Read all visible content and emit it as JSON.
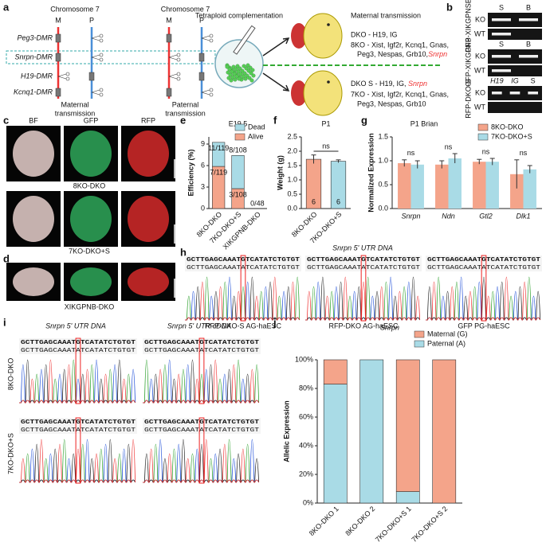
{
  "panels": {
    "letters": [
      "a",
      "b",
      "c",
      "d",
      "e",
      "f",
      "g",
      "h",
      "i",
      "j"
    ]
  },
  "diagram_a": {
    "chromosome_titles": [
      "Chromosome 7",
      "Chromosome 7"
    ],
    "parents": [
      "M",
      "P",
      "M",
      "P"
    ],
    "dmrs": [
      "Peg3-DMR",
      "Snrpn-DMR",
      "H19-DMR",
      "Kcnq1-DMR"
    ],
    "transmission": [
      "Maternal",
      "transmission",
      "Paternal",
      "transmission"
    ],
    "method": "Tetraploid complementation",
    "heading": "Maternal transmission",
    "maternal_lines": [
      "DKO - H19, IG",
      "8KO - Xist, Igf2r, Kcnq1, Gnas,",
      "Peg3, Nespas, Grb10,",
      "Snrpn"
    ],
    "paternal_lines": [
      "DKO S - H19, IG, ",
      "Snrpn",
      "7KO - Xist, Igf2r, Kcnq1, Gnas,",
      "Peg3, Nespas, Grb10"
    ]
  },
  "gels_b": [
    {
      "name": "GFP-XIKGPNSB",
      "lanes": [
        "S",
        "B"
      ],
      "rows": [
        "KO",
        "WT"
      ]
    },
    {
      "name": "GFP-XIKGPNB",
      "lanes": [
        "S",
        "B"
      ],
      "rows": [
        "KO",
        "WT"
      ]
    },
    {
      "name": "RFP-DKO-S",
      "lanes": [
        "H19",
        "IG",
        "S"
      ],
      "rows": [
        "KO",
        "WT"
      ]
    }
  ],
  "images_c": {
    "channels": [
      "BF",
      "GFP",
      "RFP"
    ],
    "rows": [
      "8KO-DKO",
      "7KO-DKO+S"
    ]
  },
  "images_d": {
    "row": "XIKGPNB-DKO"
  },
  "sanger_h": {
    "title": "Snrpn 5' UTR DNA",
    "columns": [
      {
        "ref": "GCTTGAGCAAATGTCATATCTGTGT",
        "read": "GCTTGAGCAAATATCATATCTGTGT",
        "label": "RFP-DKO-S AG-haESC"
      },
      {
        "ref": "GCTTGAGCAAATGTCATATCTGTGT",
        "read": "GCTTGAGCAAATATCATATCTGTGT",
        "label": "RFP-DKO AG-haESC"
      },
      {
        "ref": "GCTTGAGCAAATGTCATATCTGTGT",
        "read": "GCTTGAGCAAATATCATATCTGTGT",
        "label": "GFP PG-haESC"
      }
    ]
  },
  "sanger_i": {
    "titles": [
      "Snrpn 5' UTR DNA",
      "Snrpn 5' UTR cDNA"
    ],
    "rows": [
      "8KO-DKO",
      "7KO-DKO+S"
    ],
    "cells": [
      [
        {
          "ref": "GCTTGAGCAAATGTCATATCTGTGT",
          "read": "GCTTGAGCAAATATCATATCTGTGT"
        },
        {
          "ref": "GCTTGAGCAAATGTCATATCTGTGT",
          "read": "GCTTGAGCAAATATCATATCTGTGT"
        }
      ],
      [
        {
          "ref": "GCTTGAGCAAATGTCATATCTGTGT",
          "read": "GCTTGAGCAAATATCATATCTGTGT"
        },
        {
          "ref": "GCTTGAGCAAATGTCATATCTGTGT",
          "read": "GCTTGAGCAAATATCATATCTGTGT"
        }
      ]
    ]
  },
  "chart_data": [
    {
      "type": "bar",
      "stacked": true,
      "title": "E19.5",
      "ylabel": "Efficiency (%)",
      "categories": [
        "8KO-DKO",
        "7KO-DKO+S",
        "XIKGPNB-DKO"
      ],
      "series": [
        {
          "name": "Alive",
          "color": "#f4a48a",
          "values": [
            5.88,
            2.78,
            0
          ]
        },
        {
          "name": "Dead",
          "color": "#a9dbe6",
          "values": [
            3.36,
            4.63,
            0
          ]
        }
      ],
      "ylim": [
        0,
        10
      ],
      "yticks": [
        0,
        3,
        6,
        9
      ],
      "legend": "top-right",
      "annotations": [
        "11/119",
        "7/119",
        "8/108",
        "3/108",
        "0/48"
      ]
    },
    {
      "type": "bar",
      "title": "P1",
      "ylabel": "Weight (g)",
      "categories": [
        "8KO-DKO",
        "7KO-DKO+S"
      ],
      "values": [
        1.72,
        1.65
      ],
      "errors": [
        0.15,
        0.05
      ],
      "colors": [
        "#f4a48a",
        "#a9dbe6"
      ],
      "ylim": [
        0,
        2.5
      ],
      "yticks": [
        {
          "value": 0,
          "label": "0.0"
        },
        {
          "value": 0.5,
          "label": "0.5"
        },
        {
          "value": 1,
          "label": "1.0"
        },
        {
          "value": 1.5,
          "label": "1.5"
        },
        {
          "value": 2,
          "label": "2.0"
        },
        {
          "value": 2.5,
          "label": "2.5"
        }
      ],
      "annotations": [
        "ns",
        "6",
        "6"
      ]
    },
    {
      "type": "bar",
      "title": "P1 Brian",
      "ylabel": "Normalized Expression",
      "categories": [
        "Snrpn",
        "Ndn",
        "Gtl2",
        "Dlk1"
      ],
      "series": [
        {
          "name": "8KO-DKO",
          "color": "#f4a48a",
          "values": [
            0.95,
            0.92,
            0.98,
            0.72
          ],
          "errors": [
            0.07,
            0.08,
            0.05,
            0.3
          ]
        },
        {
          "name": "7KO-DKO+S",
          "color": "#a9dbe6",
          "values": [
            0.92,
            1.05,
            0.98,
            0.82
          ],
          "errors": [
            0.08,
            0.1,
            0.07,
            0.08
          ]
        }
      ],
      "ylim": [
        0,
        1.5
      ],
      "yticks": [
        {
          "value": 0,
          "label": "0.0"
        },
        {
          "value": 0.5,
          "label": "0.5"
        },
        {
          "value": 1,
          "label": "1.0"
        },
        {
          "value": 1.5,
          "label": "1.5"
        }
      ],
      "legend": "top-right",
      "annotations": [
        "ns",
        "ns",
        "ns",
        "ns"
      ]
    },
    {
      "type": "bar",
      "stacked": true,
      "title": "Snrpn",
      "ylabel": "Allelic Expression",
      "categories": [
        "8KO-DKO 1",
        "8KO-DKO 2",
        "7KO-DKO+S 1",
        "7KO-DKO+S 2"
      ],
      "series": [
        {
          "name": "Paternal (A)",
          "color": "#a9dbe6",
          "values": [
            83,
            100,
            8,
            0
          ]
        },
        {
          "name": "Maternal (G)",
          "color": "#f4a48a",
          "values": [
            17,
            0,
            92,
            100
          ]
        }
      ],
      "ylim": [
        0,
        100
      ],
      "yticks": [
        {
          "value": 0,
          "label": "0%"
        },
        {
          "value": 20,
          "label": "20%"
        },
        {
          "value": 40,
          "label": "40%"
        },
        {
          "value": 60,
          "label": "60%"
        },
        {
          "value": 80,
          "label": "80%"
        },
        {
          "value": 100,
          "label": "100%"
        }
      ],
      "legend": "top-right"
    }
  ]
}
